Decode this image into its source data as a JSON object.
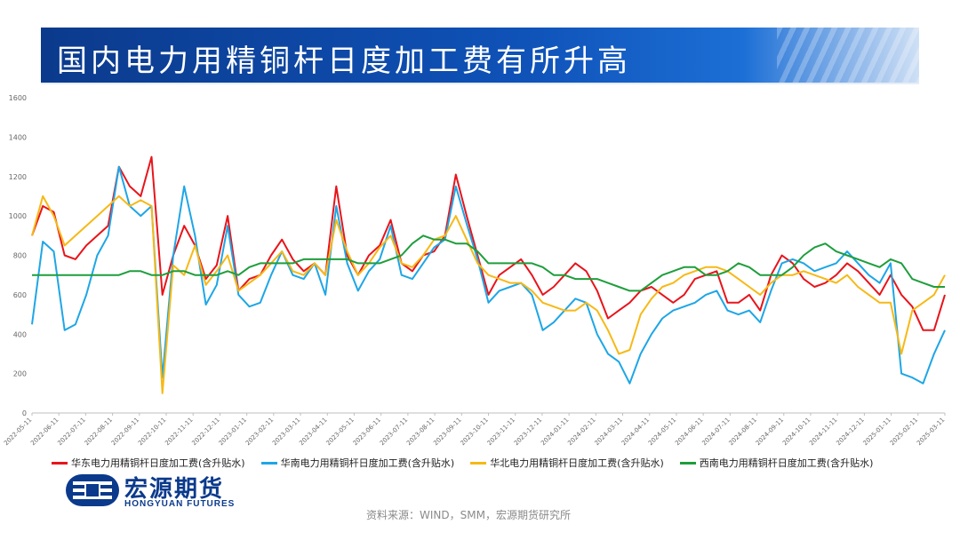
{
  "header": {
    "title": "国内电力用精铜杆日度加工费有所升高"
  },
  "chart_data": {
    "type": "line",
    "ylim": [
      0,
      1600
    ],
    "yticks": [
      "0",
      "200",
      "400",
      "600",
      "800",
      "1000",
      "1200",
      "1400",
      "1600"
    ],
    "x_tick_labels": [
      "2022-05-11",
      "2022-06-11",
      "2022-07-11",
      "2022-08-11",
      "2022-09-11",
      "2022-10-11",
      "2022-11-11",
      "2022-12-11",
      "2023-01-11",
      "2023-02-11",
      "2023-03-11",
      "2023-04-11",
      "2023-05-11",
      "2023-06-11",
      "2023-07-11",
      "2023-08-11",
      "2023-09-11",
      "2023-10-11",
      "2023-11-11",
      "2023-12-11",
      "2024-01-11",
      "2024-02-11",
      "2024-03-11",
      "2024-04-11",
      "2024-05-11",
      "2024-06-11",
      "2024-07-11",
      "2024-08-11",
      "2024-09-11",
      "2024-10-11",
      "2024-11-11",
      "2024-12-11",
      "2025-01-11",
      "2025-02-11",
      "2025-03-11"
    ],
    "series": [
      {
        "name": "华东电力用精铜杆日度加工费(含升贴水)",
        "color": "#e8141b",
        "values": [
          900,
          1050,
          1020,
          800,
          780,
          850,
          900,
          950,
          1250,
          1150,
          1100,
          1300,
          600,
          800,
          950,
          850,
          680,
          750,
          1000,
          620,
          680,
          700,
          800,
          880,
          780,
          720,
          760,
          700,
          1150,
          800,
          700,
          800,
          850,
          980,
          760,
          720,
          800,
          820,
          900,
          1210,
          1000,
          800,
          600,
          700,
          740,
          780,
          700,
          600,
          640,
          700,
          760,
          720,
          620,
          480,
          520,
          560,
          620,
          640,
          600,
          560,
          600,
          680,
          700,
          720,
          560,
          560,
          600,
          520,
          700,
          800,
          760,
          680,
          640,
          660,
          700,
          760,
          720,
          660,
          600,
          700,
          600,
          540,
          420,
          420,
          600
        ]
      },
      {
        "name": "华南电力用精铜杆日度加工费(含升贴水)",
        "color": "#1ea6e6",
        "values": [
          450,
          870,
          820,
          420,
          450,
          600,
          800,
          900,
          1250,
          1050,
          1000,
          1050,
          180,
          800,
          1150,
          900,
          550,
          650,
          950,
          600,
          540,
          560,
          700,
          820,
          700,
          680,
          760,
          600,
          1050,
          760,
          620,
          720,
          780,
          950,
          700,
          680,
          760,
          840,
          880,
          1150,
          960,
          780,
          560,
          620,
          640,
          660,
          600,
          420,
          460,
          520,
          580,
          560,
          400,
          300,
          260,
          150,
          300,
          400,
          480,
          520,
          540,
          560,
          600,
          620,
          520,
          500,
          520,
          460,
          620,
          760,
          780,
          760,
          720,
          740,
          760,
          820,
          760,
          700,
          660,
          760,
          200,
          180,
          150,
          300,
          420
        ]
      },
      {
        "name": "华北电力用精铜杆日度加工费(含升贴水)",
        "color": "#f6b916",
        "values": [
          900,
          1100,
          1000,
          850,
          900,
          950,
          1000,
          1050,
          1100,
          1050,
          1080,
          1050,
          100,
          750,
          700,
          850,
          650,
          720,
          800,
          620,
          660,
          700,
          760,
          820,
          720,
          700,
          760,
          700,
          980,
          820,
          700,
          760,
          840,
          900,
          760,
          740,
          800,
          880,
          900,
          1000,
          880,
          760,
          700,
          680,
          660,
          660,
          620,
          560,
          540,
          520,
          520,
          560,
          520,
          420,
          300,
          320,
          500,
          580,
          640,
          660,
          700,
          720,
          740,
          740,
          720,
          680,
          640,
          600,
          660,
          700,
          700,
          720,
          700,
          680,
          660,
          700,
          640,
          600,
          560,
          560,
          300,
          520,
          560,
          600,
          700
        ]
      },
      {
        "name": "西南电力用精铜杆日度加工费(含升贴水)",
        "color": "#1e9e3c",
        "values": [
          700,
          700,
          700,
          700,
          700,
          700,
          700,
          700,
          700,
          720,
          720,
          700,
          700,
          720,
          720,
          700,
          700,
          700,
          720,
          700,
          740,
          760,
          760,
          760,
          760,
          780,
          780,
          780,
          780,
          780,
          760,
          760,
          760,
          780,
          800,
          860,
          900,
          880,
          880,
          860,
          860,
          820,
          760,
          760,
          760,
          760,
          760,
          740,
          700,
          700,
          680,
          680,
          680,
          660,
          640,
          620,
          620,
          660,
          700,
          720,
          740,
          740,
          700,
          700,
          720,
          760,
          740,
          700,
          700,
          700,
          740,
          800,
          840,
          860,
          820,
          800,
          780,
          760,
          740,
          780,
          760,
          680,
          660,
          640,
          640
        ]
      }
    ]
  },
  "source": "资料来源：WIND，SMM，宏源期货研究所",
  "logo": {
    "name_cn": "宏源期货",
    "name_en": "HONGYUAN FUTURES"
  }
}
